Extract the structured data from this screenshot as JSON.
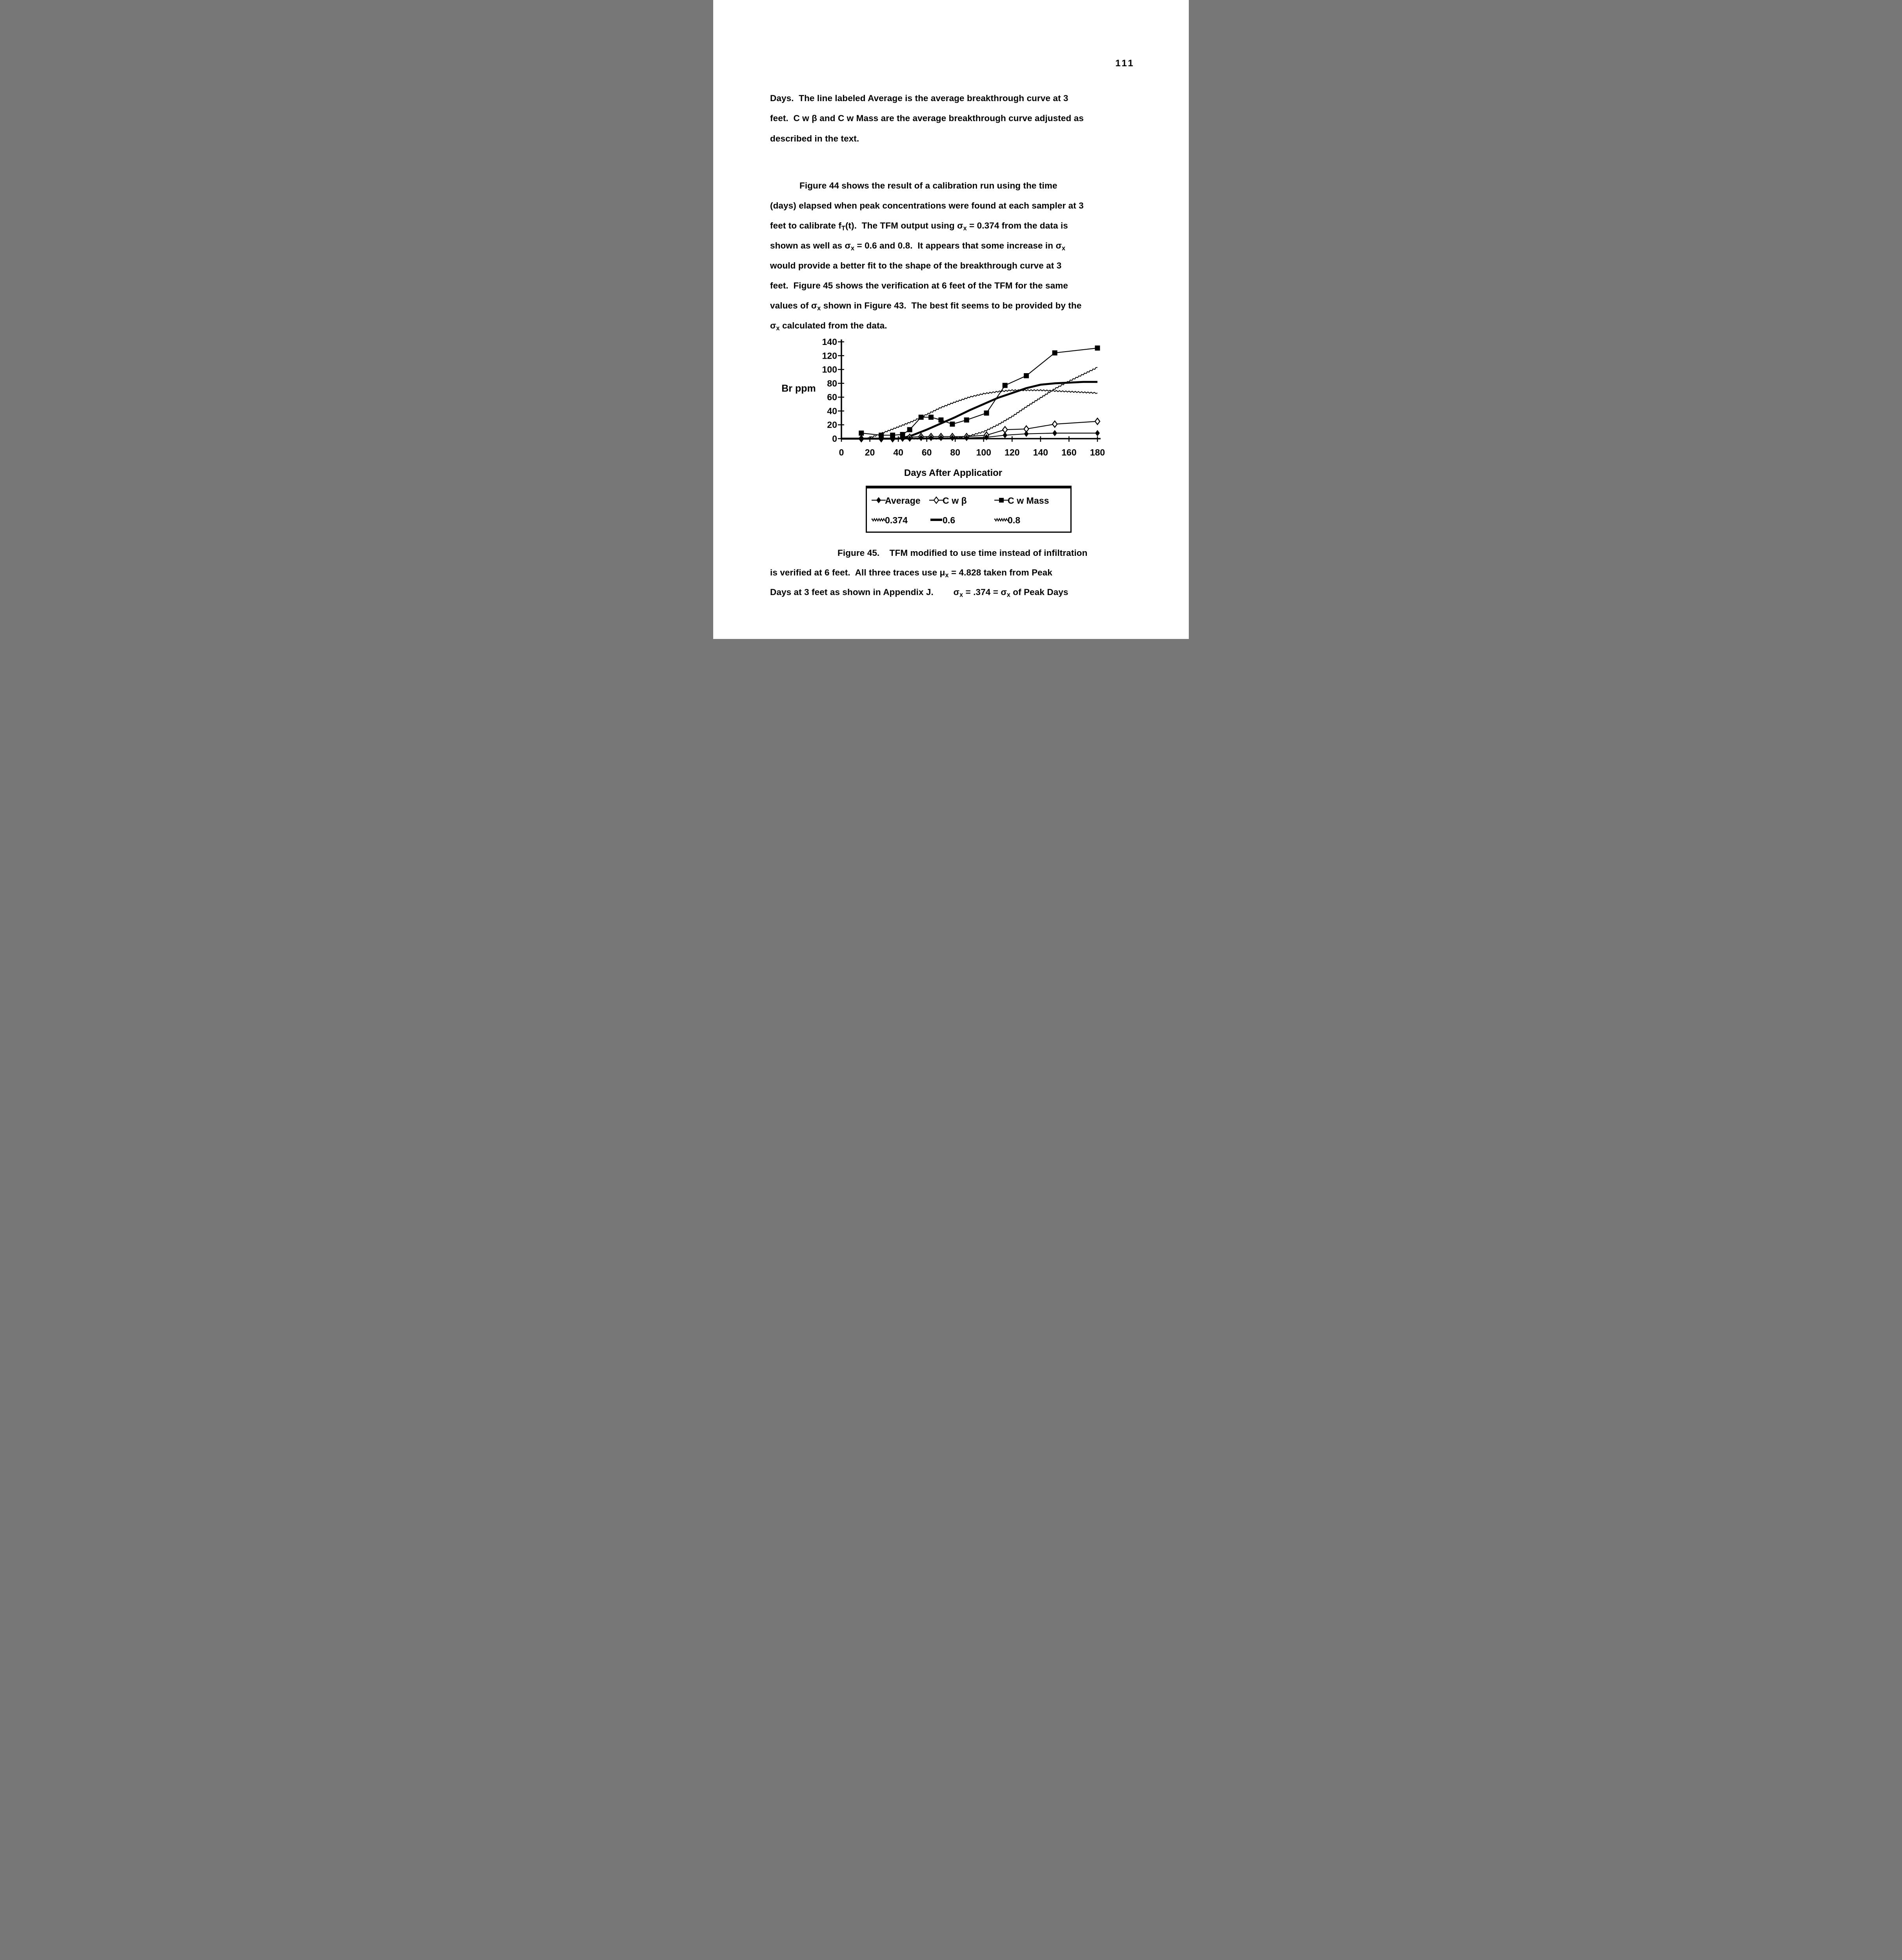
{
  "page": {
    "number": "111"
  },
  "body": {
    "paragraph1": {
      "lines": [
        {
          "t": "Days.  The line labeled Average is the average breakthrough curve at 3"
        },
        {
          "t": "feet.  C w β and C w Mass are the average breakthrough curve adjusted as"
        },
        {
          "t": "described in the text."
        }
      ]
    },
    "paragraph2": {
      "lines": [
        {
          "t": "Figure 44 shows the result of a calibration run using the time",
          "in": 75
        },
        {
          "t": "(days) elapsed when peak concentrations were found at each sampler at 3"
        },
        {
          "t": "feet to calibrate f~T~(t).  The TFM output using σ~x~ = 0.374 from the data is"
        },
        {
          "t": "shown as well as σ~x~ = 0.6 and 0.8.  It appears that some increase in σ~x~"
        },
        {
          "t": "would provide a better fit to the shape of the breakthrough curve at 3"
        },
        {
          "t": "feet.  Figure 45 shows the verification at 6 feet of the TFM for the same"
        },
        {
          "t": "values of σ~x~ shown in Figure 43.  The best fit seems to be provided by the"
        },
        {
          "t": "σ~x~ calculated from the data."
        }
      ]
    }
  },
  "figure_caption": {
    "lines": [
      {
        "t": "Figure 45.    TFM modified to use time instead of infiltration",
        "in": 172
      },
      {
        "t": "is verified at 6 feet.  All three traces use μ~x~ = 4.828 taken from Peak"
      },
      {
        "t": "Days at 3 feet as shown in Appendix J.        σ~x~ = .374 = σ~x~ of Peak Days"
      }
    ]
  },
  "chart_data": {
    "type": "line",
    "title": "",
    "xlabel": "Days After Applicatior",
    "ylabel": "Br ppm",
    "xlim": [
      0,
      180
    ],
    "ylim": [
      0,
      140
    ],
    "xticks": [
      0,
      20,
      40,
      60,
      80,
      100,
      120,
      140,
      160,
      180
    ],
    "yticks": [
      0,
      20,
      40,
      60,
      80,
      100,
      120,
      140
    ],
    "grid": false,
    "legend_position": "below-center-boxed",
    "series": [
      {
        "name": "Average",
        "marker": "filled-diamond",
        "line_style": "solid-thin",
        "x": [
          14,
          28,
          36,
          43,
          48,
          56,
          63,
          70,
          78,
          88,
          102,
          115,
          130,
          150,
          180
        ],
        "y": [
          0,
          0,
          0,
          0,
          0,
          1,
          1,
          1,
          1,
          1,
          2,
          5,
          7,
          8,
          8
        ]
      },
      {
        "name": "C w β",
        "marker": "open-diamond",
        "line_style": "solid-thin",
        "x": [
          14,
          28,
          36,
          43,
          48,
          56,
          63,
          70,
          78,
          88,
          102,
          115,
          130,
          150,
          180
        ],
        "y": [
          0,
          0,
          0,
          1,
          2,
          3,
          3,
          3,
          3,
          3,
          5,
          13,
          14,
          21,
          25
        ]
      },
      {
        "name": "C w Mass",
        "marker": "filled-square",
        "line_style": "solid-thin",
        "x": [
          14,
          28,
          36,
          43,
          48,
          56,
          63,
          70,
          78,
          88,
          102,
          115,
          130,
          150,
          180
        ],
        "y": [
          8,
          5,
          5,
          6,
          13,
          31,
          31,
          27,
          21,
          27,
          37,
          77,
          91,
          124,
          131
        ]
      },
      {
        "name": "0.374",
        "marker": "none",
        "line_style": "wavy",
        "x": [
          0,
          10,
          18,
          25,
          30,
          40,
          50,
          60,
          70,
          80,
          90,
          100,
          110,
          120,
          130,
          140,
          150,
          160,
          170,
          180
        ],
        "y": [
          0,
          0,
          0,
          5,
          9,
          17,
          25,
          35,
          45,
          53,
          60,
          65,
          68,
          70,
          70,
          70,
          69,
          68,
          67,
          66
        ]
      },
      {
        "name": "0.6",
        "marker": "none",
        "line_style": "solid-thick",
        "x": [
          0,
          20,
          40,
          45,
          50,
          60,
          70,
          80,
          90,
          100,
          110,
          120,
          130,
          140,
          150,
          160,
          170,
          180
        ],
        "y": [
          0,
          0,
          0,
          2,
          5,
          13,
          22,
          31,
          41,
          50,
          59,
          66,
          73,
          78,
          80,
          81,
          82,
          82
        ]
      },
      {
        "name": "0.8",
        "marker": "none",
        "line_style": "wavy",
        "x": [
          0,
          40,
          70,
          80,
          90,
          100,
          110,
          120,
          130,
          140,
          150,
          160,
          170,
          180
        ],
        "y": [
          0,
          0,
          0,
          1,
          4,
          10,
          20,
          32,
          46,
          59,
          72,
          83,
          93,
          103
        ]
      }
    ]
  }
}
